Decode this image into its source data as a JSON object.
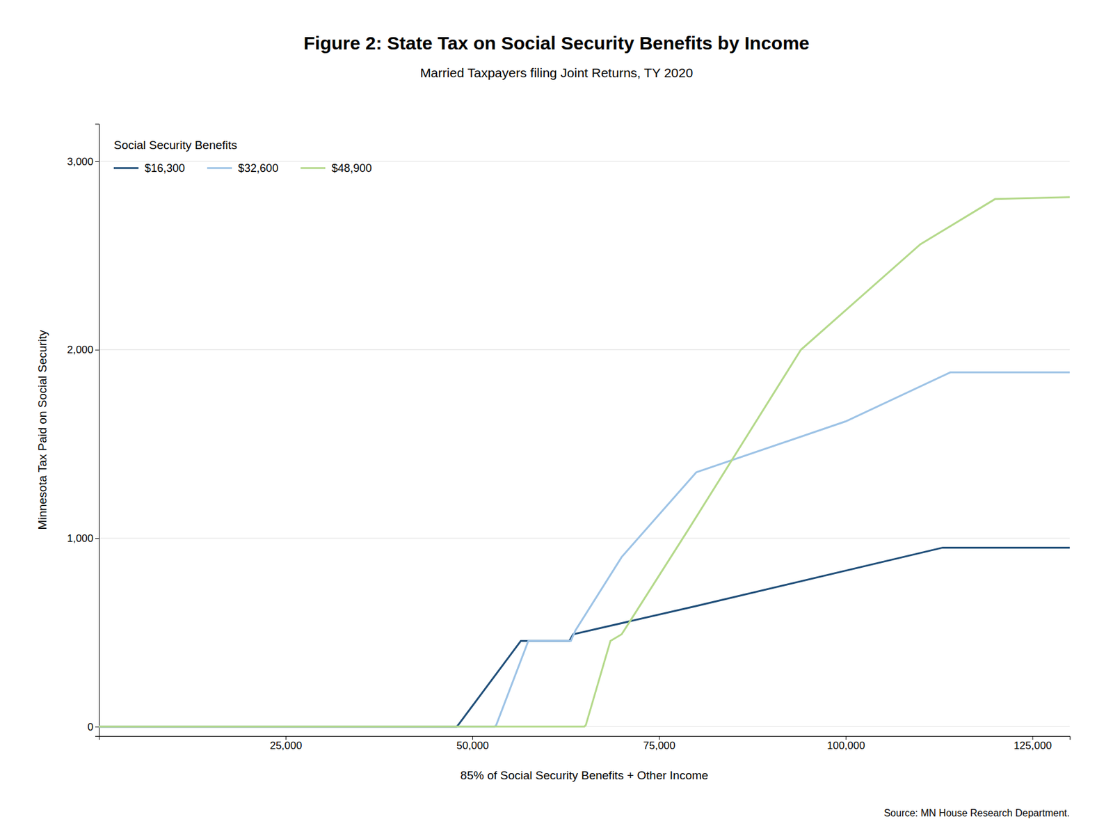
{
  "chart_data": {
    "type": "line",
    "title": "Figure 2: State Tax on Social Security Benefits by Income",
    "subtitle": "Married Taxpayers filing Joint Returns, TY 2020",
    "xlabel": "85% of Social Security Benefits + Other Income",
    "ylabel": "Minnesota Tax Paid on Social Security",
    "legend_title": "Social Security Benefits",
    "source": "Source: MN House Research Department.",
    "xlim": [
      0,
      130000
    ],
    "ylim": [
      -50,
      3200
    ],
    "xticks": [
      {
        "value": 25000,
        "label": "25,000"
      },
      {
        "value": 50000,
        "label": "50,000"
      },
      {
        "value": 75000,
        "label": "75,000"
      },
      {
        "value": 100000,
        "label": "100,000"
      },
      {
        "value": 125000,
        "label": "125,000"
      }
    ],
    "yticks": [
      0,
      {
        "value": 1000,
        "label": "1,000"
      },
      {
        "value": 2000,
        "label": "2,000"
      },
      {
        "value": 3000,
        "label": "3,000"
      }
    ],
    "grid": true,
    "legend": "top-left",
    "series": [
      {
        "name": "$16,300",
        "color": "#1f4e79",
        "x": [
          0,
          47900,
          48100,
          56500,
          63000,
          63500,
          80000,
          113000,
          130000
        ],
        "values": [
          0,
          0,
          8,
          455,
          455,
          490,
          640,
          950,
          950
        ]
      },
      {
        "name": "$32,600",
        "color": "#9dc3e6",
        "x": [
          0,
          53000,
          53200,
          57500,
          63200,
          63800,
          70000,
          80000,
          100000,
          114000,
          130000
        ],
        "values": [
          0,
          0,
          8,
          455,
          455,
          510,
          900,
          1350,
          1620,
          1880,
          1880
        ]
      },
      {
        "name": "$48,900",
        "color": "#b4d98a",
        "x": [
          0,
          65000,
          65200,
          68500,
          70000,
          79000,
          94000,
          110000,
          120000,
          130000
        ],
        "values": [
          0,
          0,
          8,
          455,
          490,
          1050,
          2000,
          2560,
          2800,
          2810
        ]
      }
    ]
  }
}
